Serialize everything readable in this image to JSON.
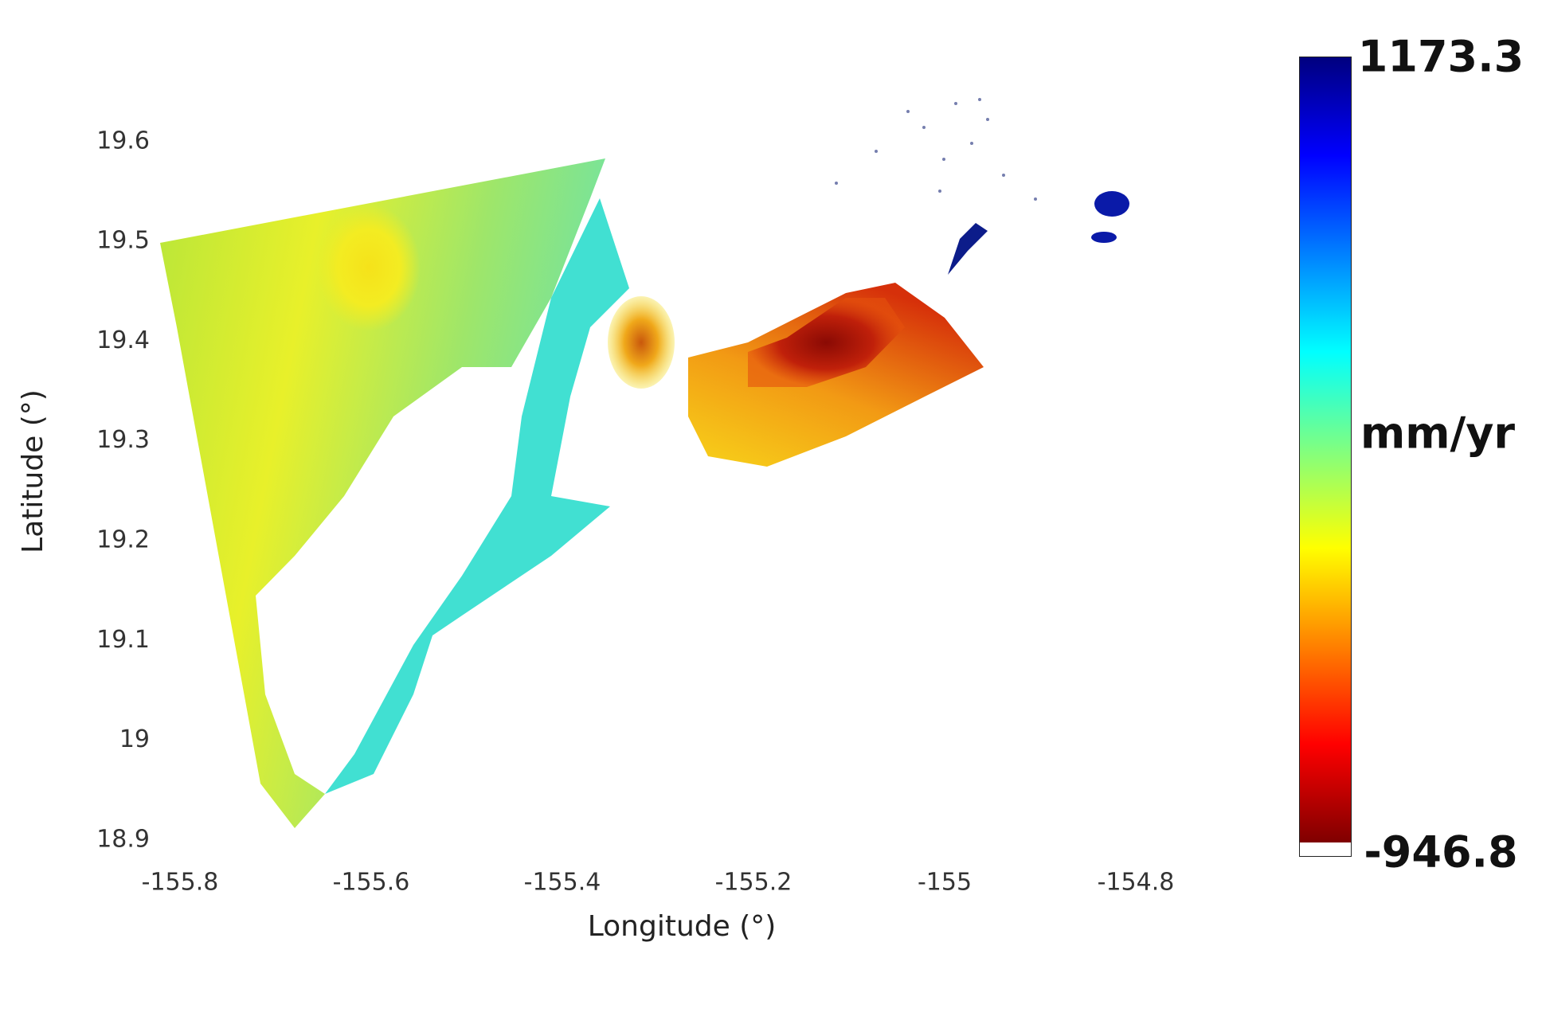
{
  "chart_data": {
    "type": "velocity-map",
    "xlabel": "Longitude (°)",
    "ylabel": "Latitude (°)",
    "xlim": [
      -155.83,
      -154.655
    ],
    "ylim": [
      18.88,
      19.686
    ],
    "xticks": [
      -155.8,
      -155.6,
      -155.4,
      -155.2,
      -155,
      -154.8
    ],
    "yticks": [
      18.9,
      19,
      19.1,
      19.2,
      19.3,
      19.4,
      19.5,
      19.6
    ],
    "colorbar": {
      "label": "mm/yr",
      "clim": [
        -946.8,
        1173.3
      ],
      "colormap": "jet"
    }
  }
}
